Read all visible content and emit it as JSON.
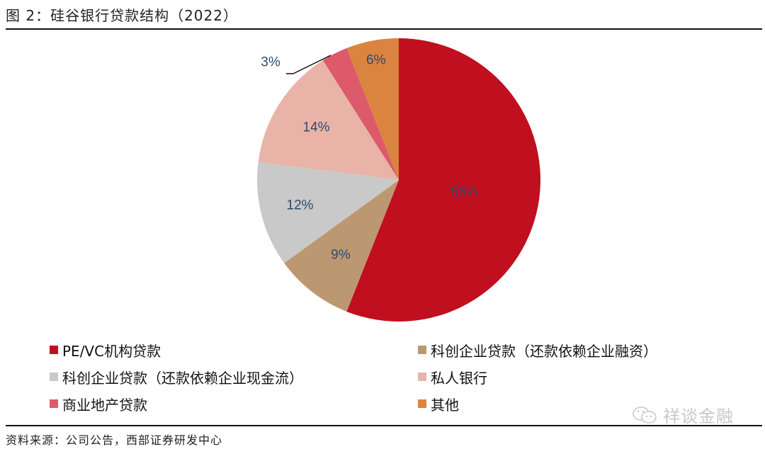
{
  "header": {
    "title": "图 2：硅谷银行贷款结构（2022）"
  },
  "footer": {
    "source": "资料来源：公司公告，西部证券研发中心"
  },
  "watermark": {
    "text": "祥谈金融",
    "icon": "wechat-icon"
  },
  "chart_data": {
    "type": "pie",
    "title": "硅谷银行贷款结构（2022）",
    "start_angle": "12 o'clock",
    "direction": "clockwise",
    "categories": [
      "PE/VC机构贷款",
      "科创企业贷款（还款依赖企业融资）",
      "科创企业贷款（还款依赖企业现金流）",
      "私人银行",
      "商业地产贷款",
      "其他"
    ],
    "values": [
      56,
      9,
      12,
      14,
      3,
      6
    ],
    "labels": [
      "56%",
      "9%",
      "12%",
      "14%",
      "3%",
      "6%"
    ],
    "colors": [
      "#C00F1E",
      "#BC9872",
      "#C9C9C9",
      "#E9B3A8",
      "#DD5A6B",
      "#DA843F"
    ],
    "label_color": "#2F4A6E",
    "legend_position": "bottom",
    "legend_order": [
      0,
      1,
      2,
      3,
      4,
      5
    ]
  },
  "legend": {
    "items": [
      {
        "label": "PE/VC机构贷款",
        "color": "#C00F1E"
      },
      {
        "label": "科创企业贷款（还款依赖企业融资）",
        "color": "#BC9872"
      },
      {
        "label": "科创企业贷款（还款依赖企业现金流）",
        "color": "#C9C9C9"
      },
      {
        "label": "私人银行",
        "color": "#E9B3A8"
      },
      {
        "label": "商业地产贷款",
        "color": "#DD5A6B"
      },
      {
        "label": "其他",
        "color": "#DA843F"
      }
    ]
  }
}
